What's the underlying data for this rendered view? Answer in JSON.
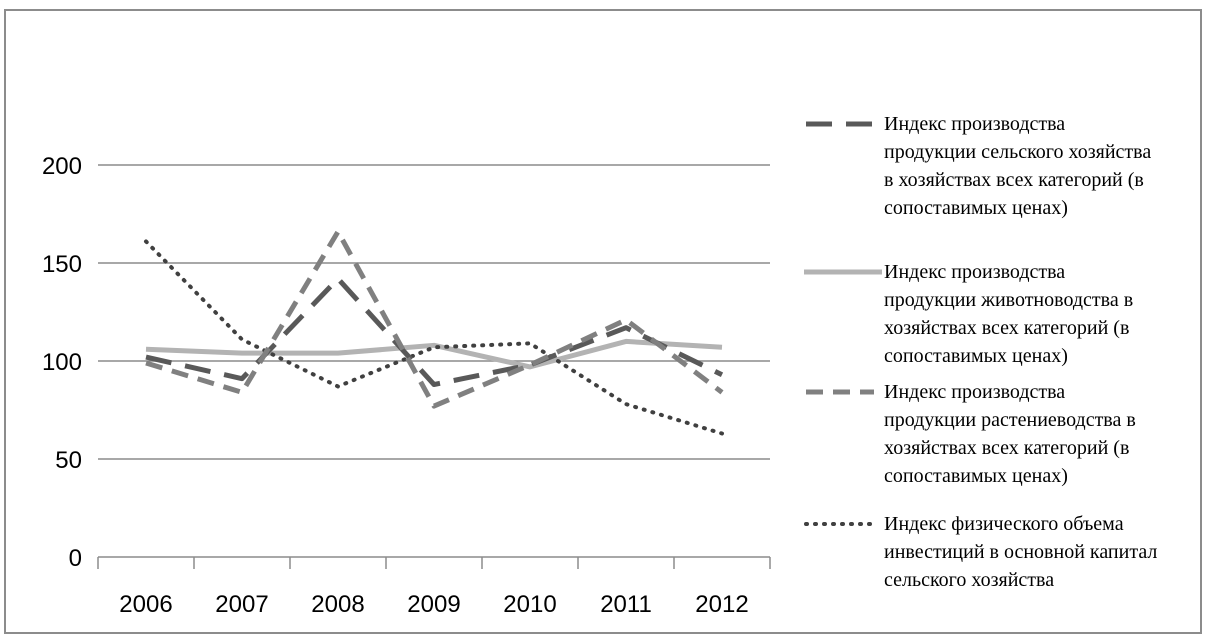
{
  "chart_data": {
    "type": "line",
    "title": "",
    "xlabel": "",
    "ylabel": "",
    "x": [
      "2006",
      "2007",
      "2008",
      "2009",
      "2010",
      "2011",
      "2012"
    ],
    "yticks": [
      "0",
      "50",
      "100",
      "150",
      "200"
    ],
    "ylim": [
      0,
      200
    ],
    "grid": "horizontal",
    "legend_position": "right",
    "series": [
      {
        "name": "Индекс производства\nпродукции сельского хозяйства\nв хозяйствах всех категорий (в\nсопоставимых ценах)",
        "values": [
          102,
          91,
          142,
          88,
          98,
          117,
          93
        ],
        "color": "#595959",
        "style": "long-dash"
      },
      {
        "name": "Индекс производства\nпродукции животноводства в\nхозяйствах всех категорий (в\nсопоставимых ценах)",
        "values": [
          106,
          104,
          104,
          108,
          97,
          110,
          107
        ],
        "color": "#b3b3b3",
        "style": "solid"
      },
      {
        "name": "Индекс производства\nпродукции растениеводства в\nхозяйствах всех категорий (в\nсопоставимых ценах)",
        "values": [
          99,
          84,
          166,
          77,
          98,
          121,
          84
        ],
        "color": "#808080",
        "style": "dash"
      },
      {
        "name": "Индекс физического объема\nинвестиций в основной капитал\nсельского хозяйства",
        "values": [
          161,
          111,
          87,
          107,
          109,
          78,
          63
        ],
        "color": "#404040",
        "style": "dot"
      }
    ]
  }
}
